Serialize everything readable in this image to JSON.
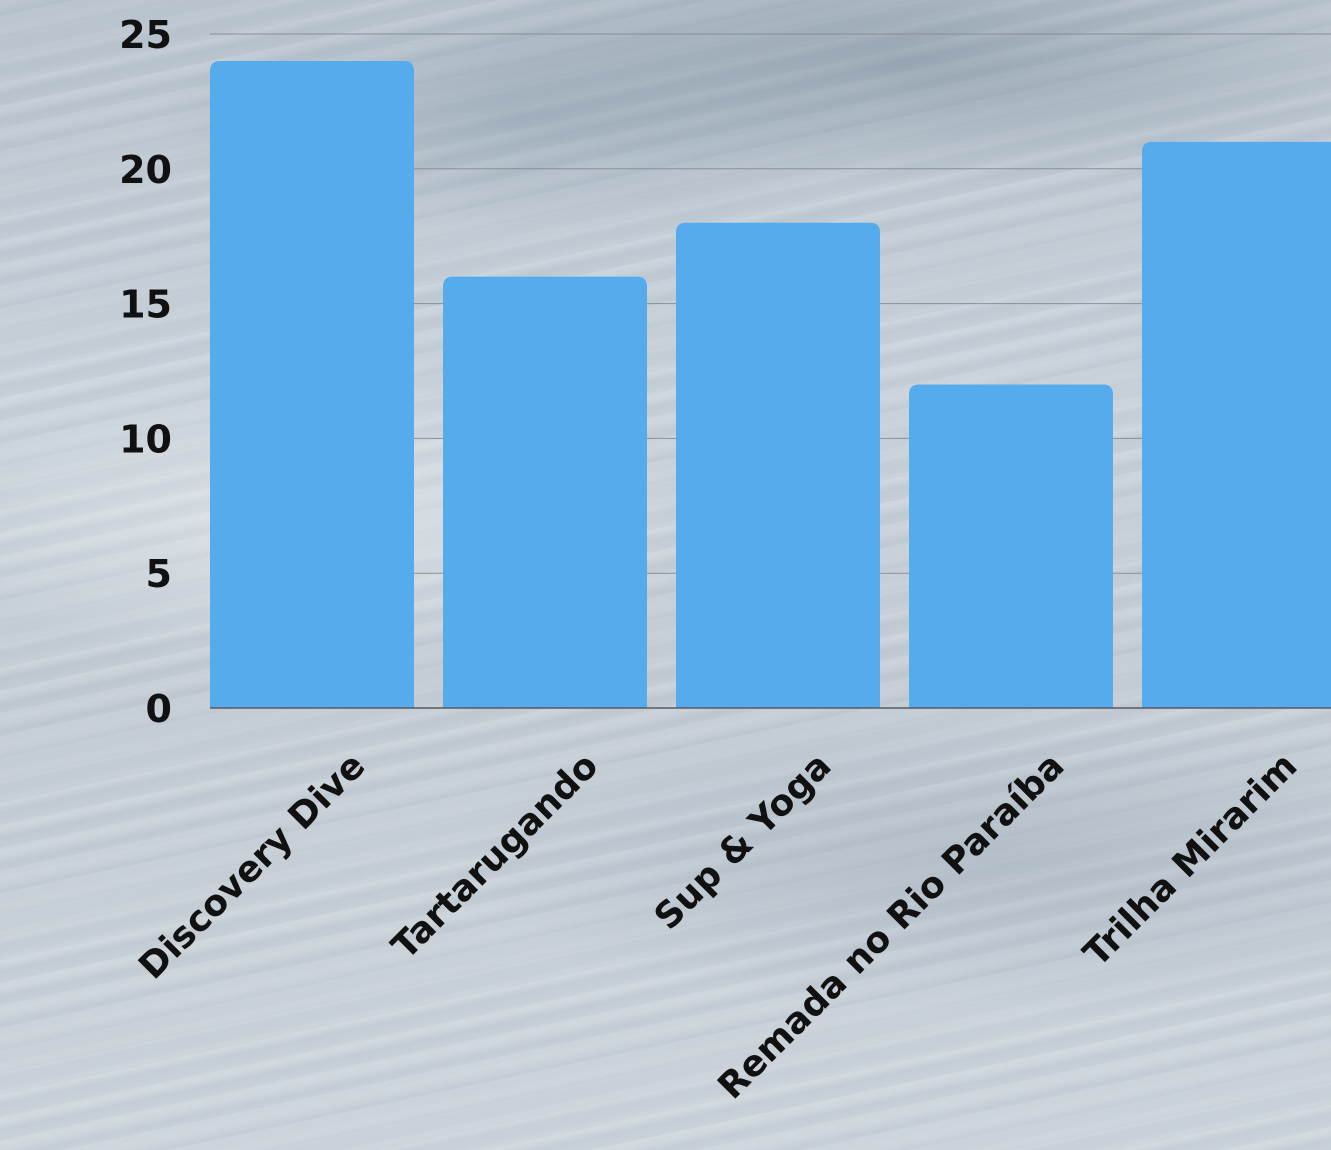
{
  "chart_data": {
    "type": "bar",
    "title": "",
    "xlabel": "",
    "ylabel": "",
    "categories": [
      "Discovery Dive",
      "Tartarugando",
      "Sup & Yoga",
      "Remada no Rio Paraíba",
      "Trilha Mirarim"
    ],
    "values": [
      24,
      16,
      18,
      12,
      21
    ],
    "ylim": [
      0,
      25
    ],
    "yticks": [
      "0",
      "5",
      "10",
      "15",
      "20",
      "25"
    ],
    "grid": true,
    "legend": "none"
  },
  "colors": {
    "bar": "#56abec",
    "grid": "#8a8f95",
    "axis": "#555a60",
    "text": "#111111",
    "title": "#1a4fb0"
  }
}
